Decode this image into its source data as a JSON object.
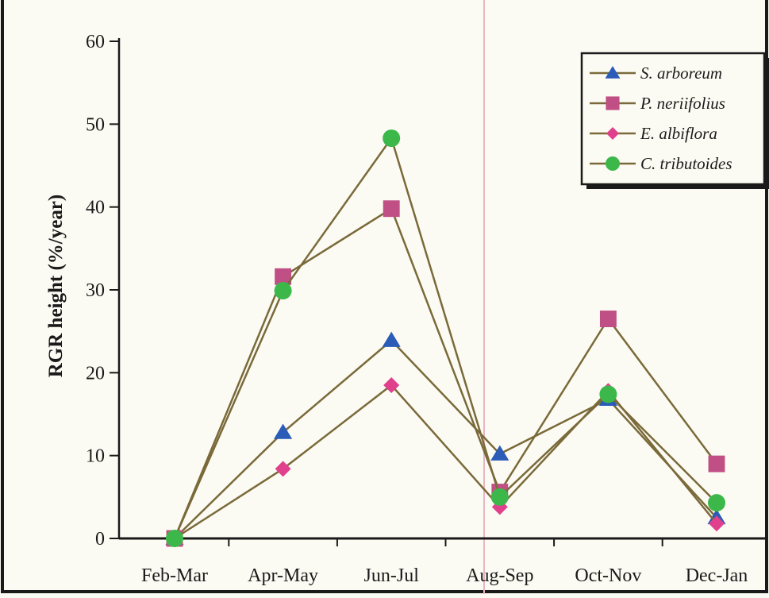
{
  "chart_data": {
    "type": "line",
    "title": "",
    "xlabel": "",
    "ylabel": "RGR height (%/year)",
    "ylim": [
      0,
      60
    ],
    "yticks": [
      0,
      10,
      20,
      30,
      40,
      50,
      60
    ],
    "grid": false,
    "legend_position": "top-right",
    "categories": [
      "Feb-Mar",
      "Apr-May",
      "Jun-Jul",
      "Aug-Sep",
      "Oct-Nov",
      "Dec-Jan"
    ],
    "line_color": "#7a6a3a",
    "series": [
      {
        "name": "S. arboreum",
        "marker": "triangle",
        "color": "#2a5cb8",
        "values": [
          0,
          12.8,
          23.9,
          10.2,
          16.8,
          2.5
        ]
      },
      {
        "name": "P. neriifolius",
        "marker": "square",
        "color": "#c04f86",
        "values": [
          0,
          31.6,
          39.8,
          5.6,
          26.5,
          9.0
        ]
      },
      {
        "name": "E. albiflora",
        "marker": "diamond",
        "color": "#e0408c",
        "values": [
          0,
          8.4,
          18.5,
          3.8,
          17.8,
          1.8
        ]
      },
      {
        "name": "C. tributoides",
        "marker": "circle",
        "color": "#3cb84a",
        "values": [
          0,
          29.9,
          48.3,
          5.0,
          17.4,
          4.3
        ]
      }
    ]
  }
}
